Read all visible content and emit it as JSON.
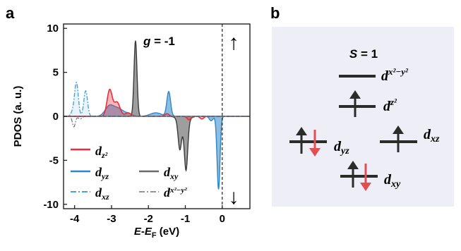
{
  "panel_a": {
    "label": "a",
    "annotation": "g = -1",
    "annotation_parts": {
      "var": "g",
      "rest": " = -1"
    },
    "spin_up_arrow": "↑",
    "spin_down_arrow": "↓",
    "colors": {
      "dz2": "#e8303a",
      "dyz": "#2f86c8",
      "dxz": "#4aa3d9",
      "dxy": "#6a6a6a",
      "dx2y2": "#707070"
    }
  },
  "panel_b": {
    "label": "b",
    "spin_label": "S = 1",
    "spin_label_parts": {
      "var": "S",
      "rest": " = 1"
    },
    "levels": [
      {
        "id": "dx2-y2",
        "label": "d",
        "sub": "x²−y²",
        "electrons": "none"
      },
      {
        "id": "dz2",
        "label": "d",
        "sub": "z²",
        "electrons": "up"
      },
      {
        "id": "dyz",
        "label": "d",
        "sub": "yz",
        "electrons": "up-down"
      },
      {
        "id": "dxz",
        "label": "d",
        "sub": "xz",
        "electrons": "up"
      },
      {
        "id": "dxy",
        "label": "d",
        "sub": "xy",
        "electrons": "up-down"
      }
    ],
    "background": "#eeeef6",
    "up_arrow_color": "#2b2b2b",
    "down_arrow_color": "#e14f55"
  },
  "chart_data": {
    "type": "area",
    "title": "",
    "xlabel": "E-E_F (eV)",
    "xlabel_parts": {
      "E1": "E",
      "dash": "-",
      "E2": "E",
      "sub": "F",
      "unit": " (eV)"
    },
    "ylabel": "PDOS (a. u.)",
    "xlim": [
      -4.3,
      0.75
    ],
    "ylim": [
      -10.5,
      10.5
    ],
    "xticks": [
      -4,
      -3,
      -2,
      -1,
      0
    ],
    "yticks": [
      -10,
      -5,
      0,
      5,
      10
    ],
    "fermi_level": 0,
    "legend_location": "lower-left",
    "legend": [
      {
        "series": "dz2",
        "label": "d",
        "sub": "z²",
        "style": "solid"
      },
      {
        "series": "dyz",
        "label": "d",
        "sub": "yz",
        "style": "solid"
      },
      {
        "series": "dxz",
        "label": "d",
        "sub": "xz",
        "style": "dash-dot"
      },
      {
        "series": "dxy",
        "label": "d",
        "sub": "xy",
        "style": "solid"
      },
      {
        "series": "dx2y2",
        "label": "d",
        "sub": "x²−y²",
        "style": "dash-dot"
      }
    ],
    "series": [
      {
        "id": "dz2",
        "name": "dz²",
        "peaks": [
          {
            "x": -3.05,
            "y": 3.0,
            "w": 0.07
          },
          {
            "x": -2.85,
            "y": 1.6,
            "w": 0.08
          },
          {
            "x": -2.55,
            "y": 0.4,
            "w": 0.08
          },
          {
            "x": -1.5,
            "y": 0.3,
            "w": 0.06
          },
          {
            "x": -0.9,
            "y": -0.4,
            "w": 0.05
          },
          {
            "x": -0.55,
            "y": -0.3,
            "w": 0.05
          }
        ]
      },
      {
        "id": "dyz",
        "name": "dyz",
        "peaks": [
          {
            "x": -3.05,
            "y": 1.2,
            "w": 0.12
          },
          {
            "x": -2.8,
            "y": 0.8,
            "w": 0.12
          },
          {
            "x": -2.55,
            "y": 0.3,
            "w": 0.1
          },
          {
            "x": -1.8,
            "y": 0.4,
            "w": 0.15
          },
          {
            "x": -1.45,
            "y": 2.8,
            "w": 0.05
          },
          {
            "x": -0.1,
            "y": -8.3,
            "w": 0.04
          },
          {
            "x": -0.3,
            "y": -0.5,
            "w": 0.05
          }
        ]
      },
      {
        "id": "dxz",
        "name": "dxz",
        "peaks": [
          {
            "x": -3.95,
            "y": 3.8,
            "w": 0.05
          },
          {
            "x": -3.7,
            "y": 2.9,
            "w": 0.05
          },
          {
            "x": -4.05,
            "y": 0.5,
            "w": 0.05
          }
        ]
      },
      {
        "id": "dxy",
        "name": "dxy",
        "peaks": [
          {
            "x": -2.35,
            "y": 8.6,
            "w": 0.04
          },
          {
            "x": -1.15,
            "y": -3.1,
            "w": 0.045
          },
          {
            "x": -0.98,
            "y": -5.3,
            "w": 0.045
          },
          {
            "x": -1.05,
            "y": -1.0,
            "w": 0.12
          }
        ]
      },
      {
        "id": "dx2y2",
        "name": "dx²−y²",
        "peaks": [
          {
            "x": -4.02,
            "y": -1.2,
            "w": 0.04
          },
          {
            "x": -3.85,
            "y": -0.3,
            "w": 0.05
          }
        ]
      }
    ]
  }
}
